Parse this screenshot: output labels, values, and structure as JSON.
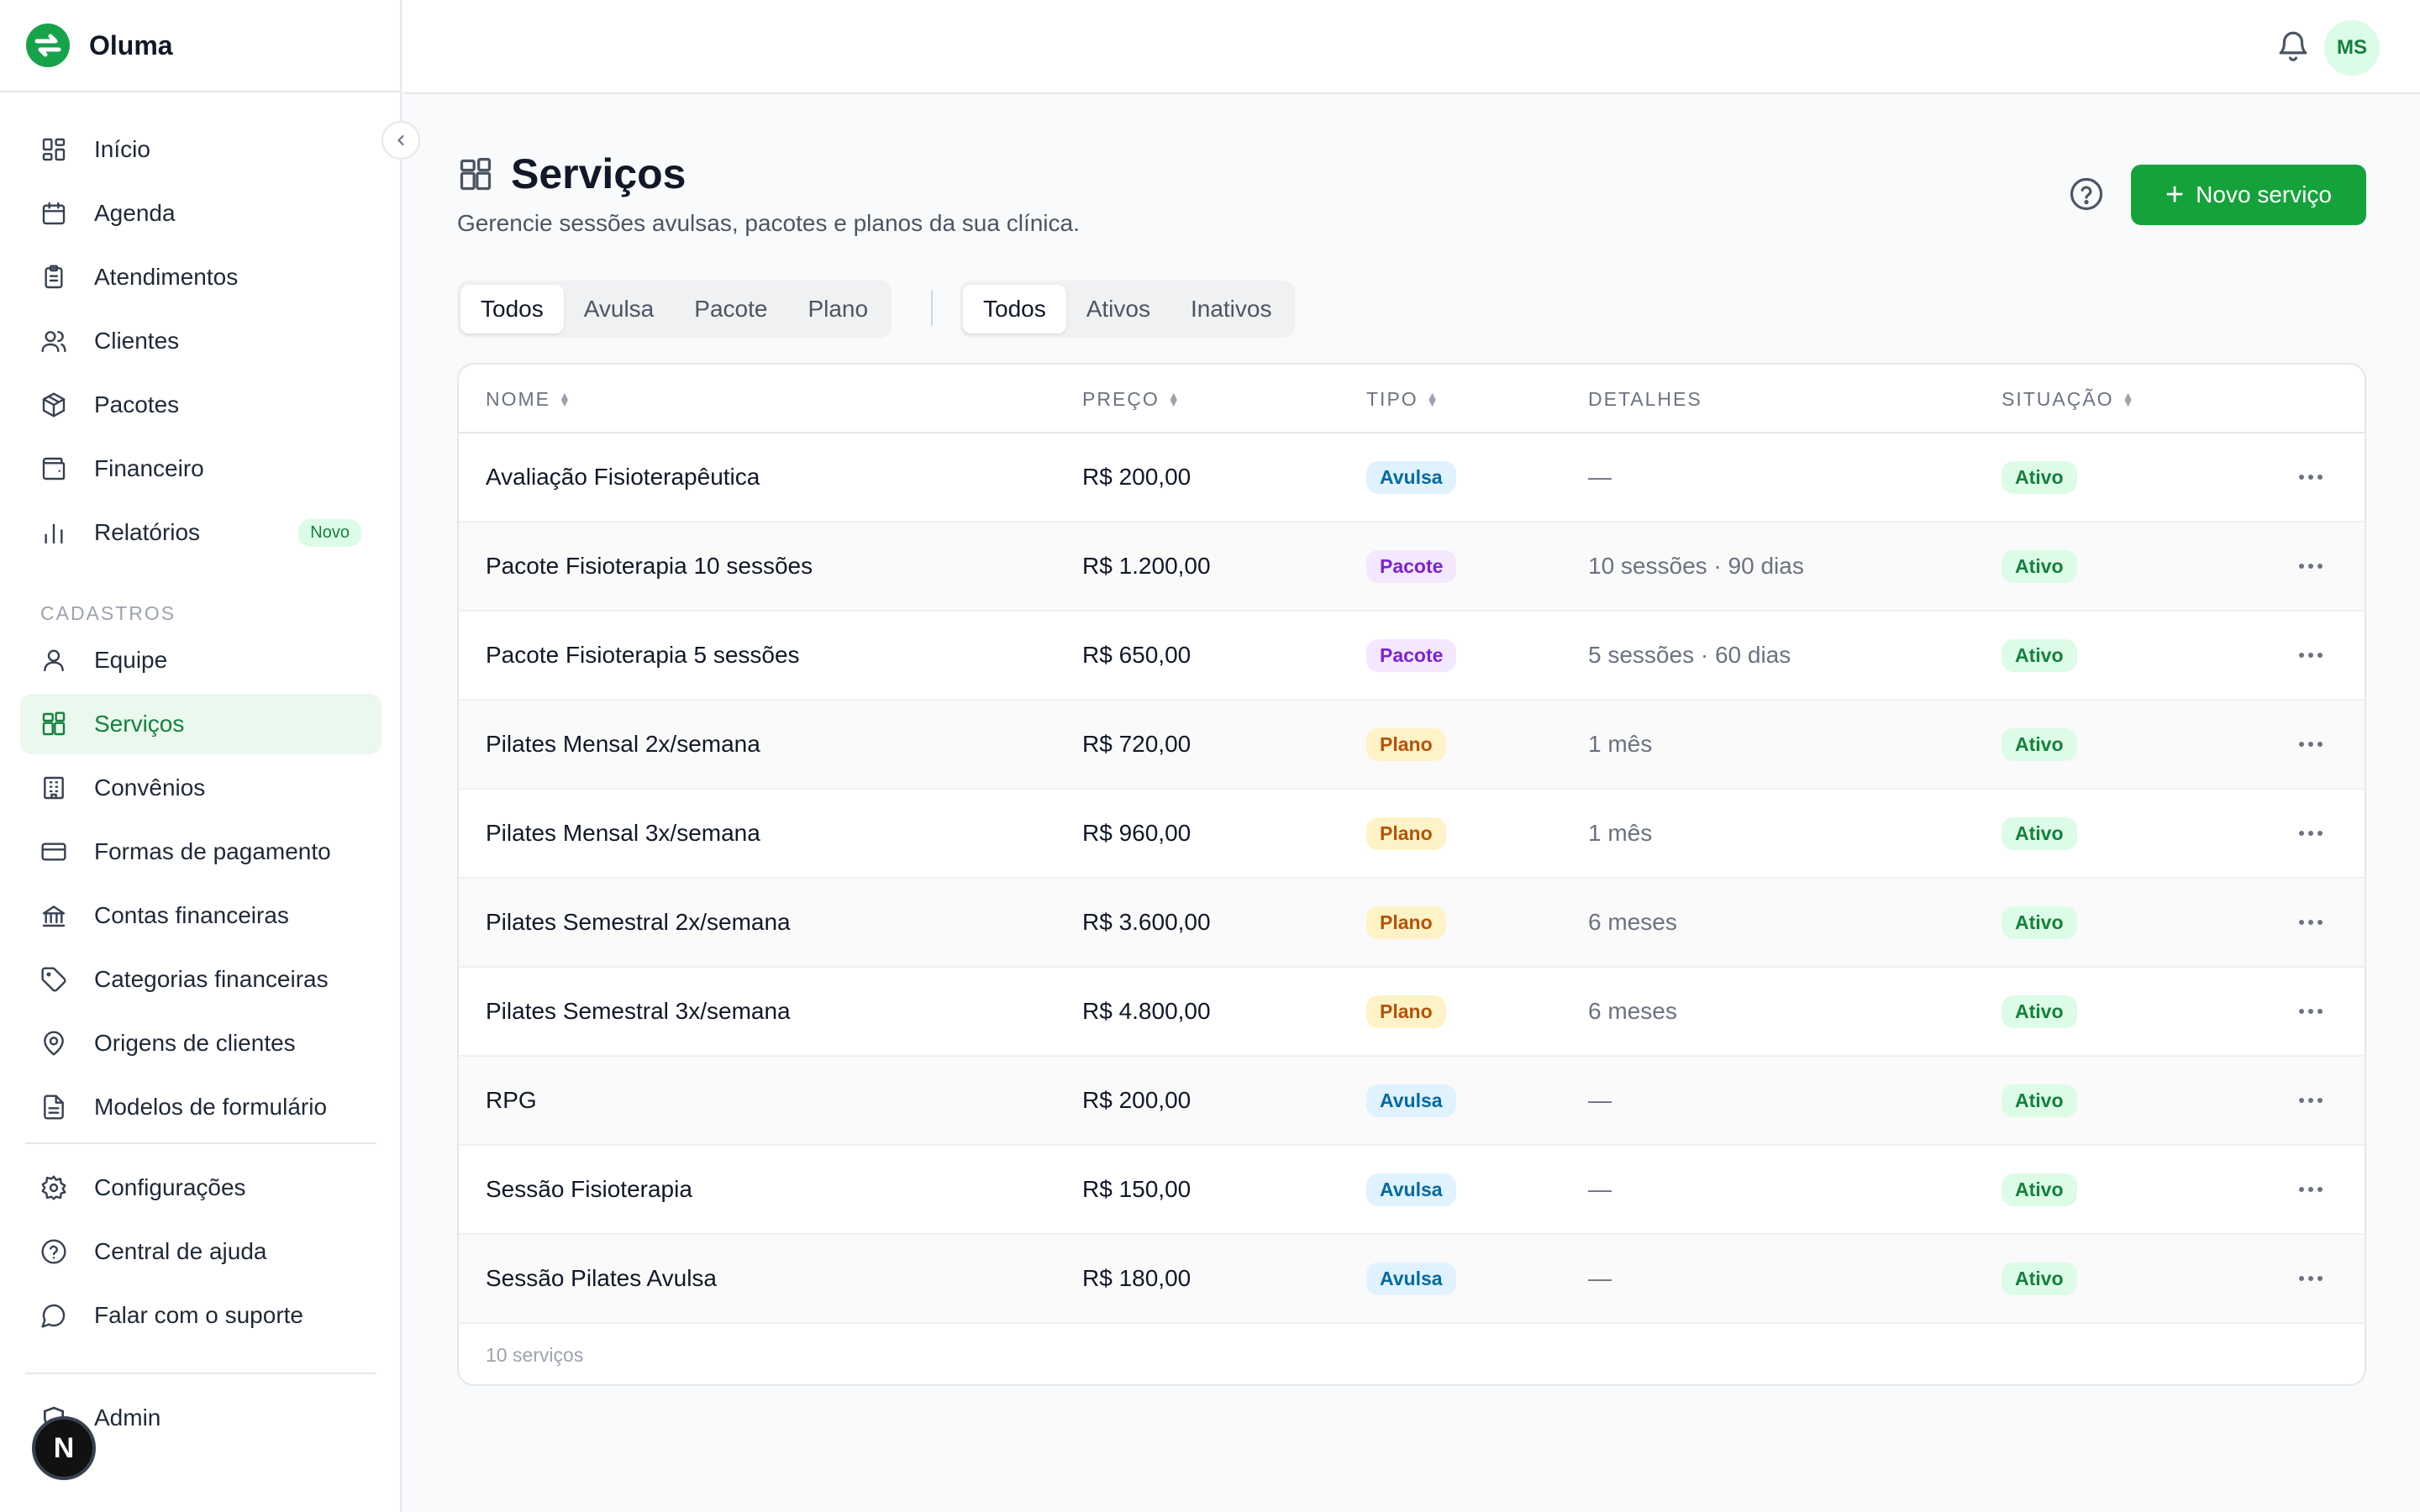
{
  "app": {
    "name": "Oluma"
  },
  "sidebar": {
    "main_items": [
      {
        "label": "Início",
        "icon": "dashboard-icon"
      },
      {
        "label": "Agenda",
        "icon": "calendar-icon"
      },
      {
        "label": "Atendimentos",
        "icon": "clipboard-icon"
      },
      {
        "label": "Clientes",
        "icon": "users-icon"
      },
      {
        "label": "Pacotes",
        "icon": "package-icon"
      },
      {
        "label": "Financeiro",
        "icon": "wallet-icon"
      },
      {
        "label": "Relatórios",
        "icon": "bar-chart-icon",
        "badge": "Novo"
      }
    ],
    "section_label": "CADASTROS",
    "register_items": [
      {
        "label": "Equipe",
        "icon": "user-icon"
      },
      {
        "label": "Serviços",
        "icon": "services-icon",
        "active": true
      },
      {
        "label": "Convênios",
        "icon": "building-icon"
      },
      {
        "label": "Formas de pagamento",
        "icon": "credit-card-icon"
      },
      {
        "label": "Contas financeiras",
        "icon": "bank-icon"
      },
      {
        "label": "Categorias financeiras",
        "icon": "tag-icon"
      },
      {
        "label": "Origens de clientes",
        "icon": "map-pin-icon"
      },
      {
        "label": "Modelos de formulário",
        "icon": "file-icon"
      }
    ],
    "footer_items": [
      {
        "label": "Configurações",
        "icon": "gear-icon"
      },
      {
        "label": "Central de ajuda",
        "icon": "help-circle-icon"
      },
      {
        "label": "Falar com o suporte",
        "icon": "chat-bubble-icon"
      }
    ],
    "admin_label": "Admin"
  },
  "topbar": {
    "avatar_initials": "MS"
  },
  "page": {
    "title": "Serviços",
    "subtitle": "Gerencie sessões avulsas, pacotes e planos da sua clínica.",
    "new_button": "Novo serviço"
  },
  "filters": {
    "type": [
      "Todos",
      "Avulsa",
      "Pacote",
      "Plano"
    ],
    "type_active": 0,
    "status": [
      "Todos",
      "Ativos",
      "Inativos"
    ],
    "status_active": 0
  },
  "table": {
    "headers": {
      "nome": "NOME",
      "preco": "PREÇO",
      "tipo": "TIPO",
      "detalhes": "DETALHES",
      "situacao": "SITUAÇÃO"
    },
    "rows": [
      {
        "nome": "Avaliação Fisioterapêutica",
        "preco": "R$ 200,00",
        "tipo": "Avulsa",
        "detalhes": "—",
        "situacao": "Ativo"
      },
      {
        "nome": "Pacote Fisioterapia 10 sessões",
        "preco": "R$ 1.200,00",
        "tipo": "Pacote",
        "detalhes": "10 sessões · 90 dias",
        "situacao": "Ativo"
      },
      {
        "nome": "Pacote Fisioterapia 5 sessões",
        "preco": "R$ 650,00",
        "tipo": "Pacote",
        "detalhes": "5 sessões · 60 dias",
        "situacao": "Ativo"
      },
      {
        "nome": "Pilates Mensal 2x/semana",
        "preco": "R$ 720,00",
        "tipo": "Plano",
        "detalhes": "1 mês",
        "situacao": "Ativo"
      },
      {
        "nome": "Pilates Mensal 3x/semana",
        "preco": "R$ 960,00",
        "tipo": "Plano",
        "detalhes": "1 mês",
        "situacao": "Ativo"
      },
      {
        "nome": "Pilates Semestral 2x/semana",
        "preco": "R$ 3.600,00",
        "tipo": "Plano",
        "detalhes": "6 meses",
        "situacao": "Ativo"
      },
      {
        "nome": "Pilates Semestral 3x/semana",
        "preco": "R$ 4.800,00",
        "tipo": "Plano",
        "detalhes": "6 meses",
        "situacao": "Ativo"
      },
      {
        "nome": "RPG",
        "preco": "R$ 200,00",
        "tipo": "Avulsa",
        "detalhes": "—",
        "situacao": "Ativo"
      },
      {
        "nome": "Sessão Fisioterapia",
        "preco": "R$ 150,00",
        "tipo": "Avulsa",
        "detalhes": "—",
        "situacao": "Ativo"
      },
      {
        "nome": "Sessão Pilates Avulsa",
        "preco": "R$ 180,00",
        "tipo": "Avulsa",
        "detalhes": "—",
        "situacao": "Ativo"
      }
    ],
    "footer": "10 serviços"
  },
  "colors": {
    "accent": "#15a23a",
    "active_nav_bg": "#eaf8ee"
  }
}
